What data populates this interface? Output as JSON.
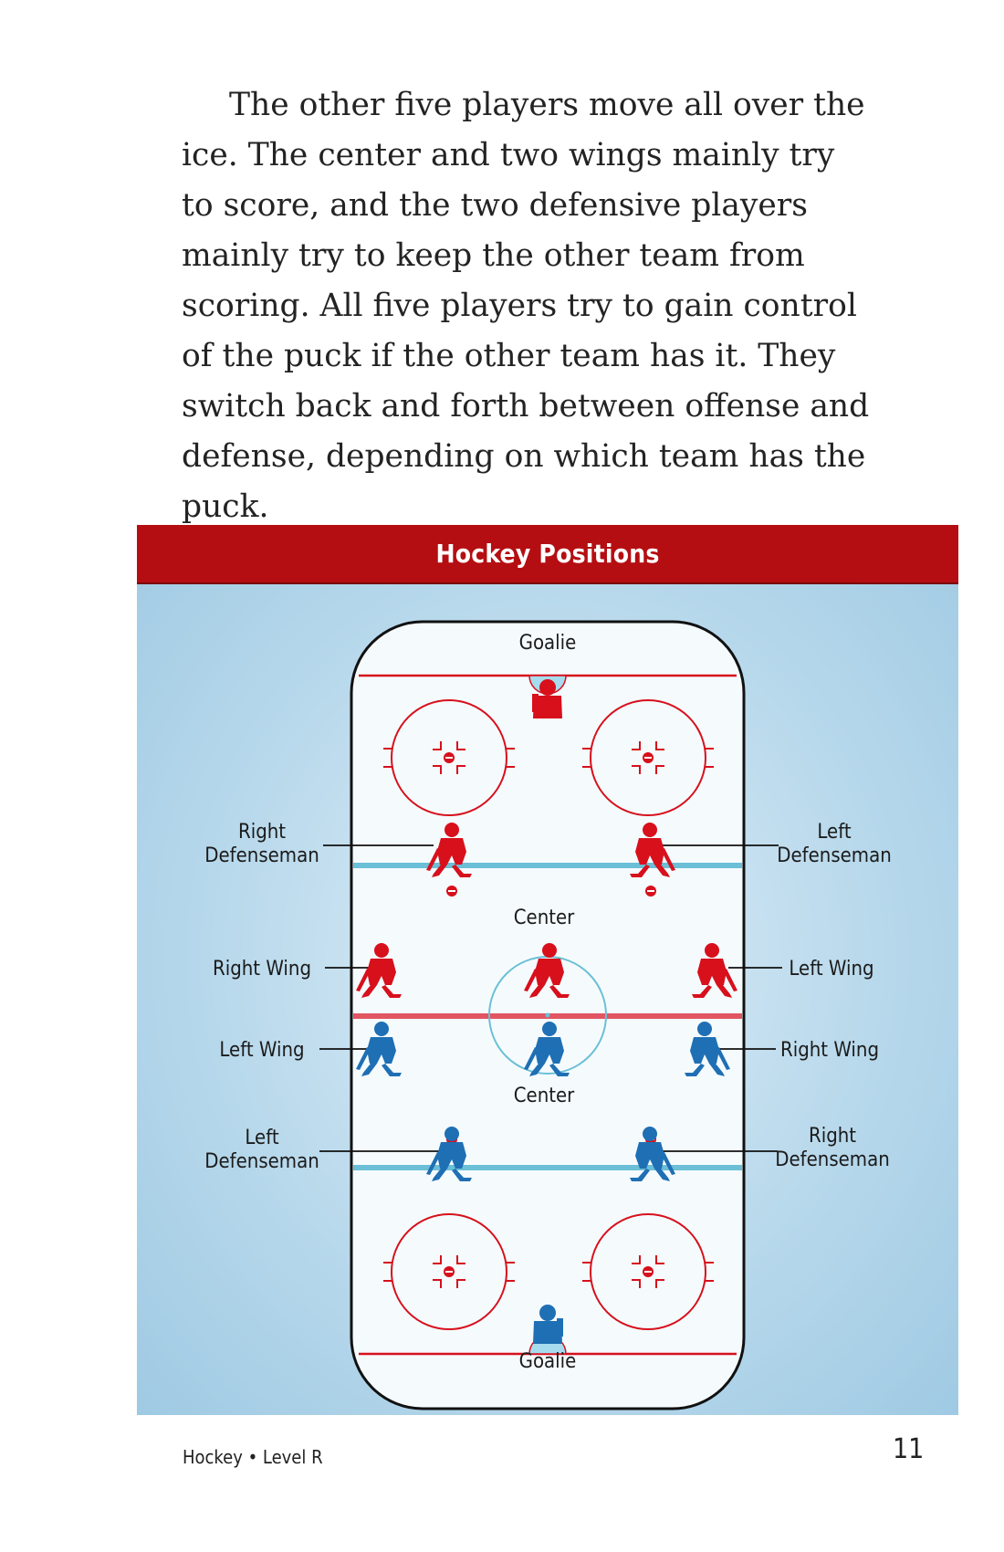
{
  "body_text": "The other five players move all over the ice. The center and two wings mainly try to score, and the two defensive players mainly try to keep the other team from scoring. All five players try to gain control of the puck if the other team has it. They switch back and forth between offense and defense, depending on which team has the puck.",
  "figure": {
    "title": "Hockey Positions",
    "labels": {
      "goalie_top": "Goalie",
      "right_defenseman_top_1": "Right",
      "right_defenseman_top_2": "Defenseman",
      "left_defenseman_top_1": "Left",
      "left_defenseman_top_2": "Defenseman",
      "center_top": "Center",
      "right_wing_top": "Right Wing",
      "left_wing_top": "Left Wing",
      "left_wing_bottom": "Left Wing",
      "right_wing_bottom": "Right Wing",
      "center_bottom": "Center",
      "left_defenseman_bottom_1": "Left",
      "left_defenseman_bottom_2": "Defenseman",
      "right_defenseman_bottom_1": "Right",
      "right_defenseman_bottom_2": "Defenseman",
      "goalie_bottom": "Goalie"
    },
    "colors": {
      "red_team": "#d7101c",
      "blue_team": "#1f6fb4",
      "header": "#b50e12",
      "rink_lines": "#d7101c",
      "blue_line": "#6bbfd6"
    }
  },
  "footer": {
    "book": "Hockey • Level R",
    "page_number": "11"
  }
}
